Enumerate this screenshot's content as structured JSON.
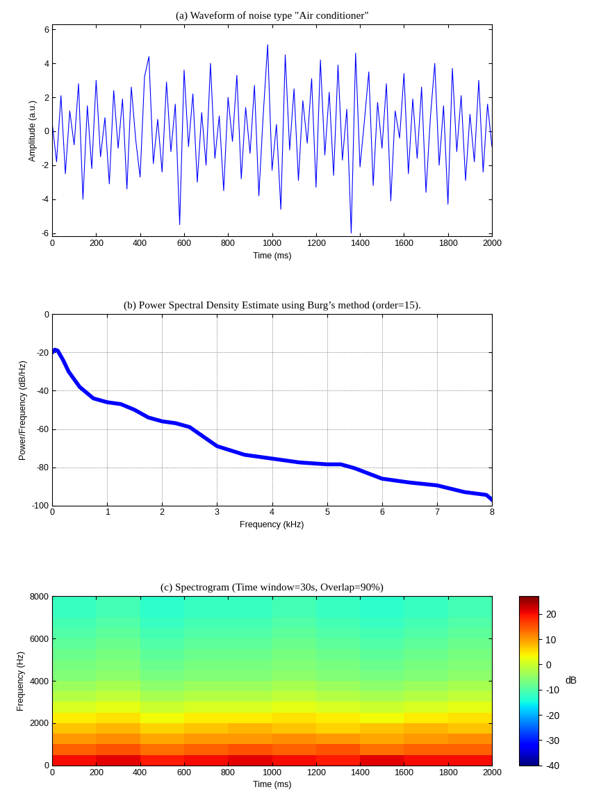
{
  "chart_data": [
    {
      "type": "line",
      "title": "(a) Waveform of noise type \"Air conditioner\"",
      "x_label": "Time (ms)",
      "y_label": "Amplitude (a.u.)",
      "x": [
        0,
        20,
        40,
        60,
        80,
        100,
        120,
        140,
        160,
        180,
        200,
        220,
        240,
        260,
        280,
        300,
        320,
        340,
        360,
        380,
        400,
        420,
        440,
        460,
        480,
        500,
        520,
        540,
        560,
        580,
        600,
        620,
        640,
        660,
        680,
        700,
        720,
        740,
        760,
        780,
        800,
        820,
        840,
        860,
        880,
        900,
        920,
        940,
        960,
        980,
        1000,
        1020,
        1040,
        1060,
        1080,
        1100,
        1120,
        1140,
        1160,
        1180,
        1200,
        1220,
        1240,
        1260,
        1280,
        1300,
        1320,
        1340,
        1360,
        1380,
        1400,
        1420,
        1440,
        1460,
        1480,
        1500,
        1520,
        1540,
        1560,
        1580,
        1600,
        1620,
        1640,
        1660,
        1680,
        1700,
        1720,
        1740,
        1760,
        1780,
        1800,
        1820,
        1840,
        1860,
        1880,
        1900,
        1920,
        1940,
        1960,
        1980,
        2000
      ],
      "values": [
        0.5,
        -1.8,
        2.1,
        -2.5,
        1.2,
        -0.8,
        2.8,
        -4.0,
        1.5,
        -2.2,
        3.0,
        -1.5,
        0.8,
        -3.1,
        2.4,
        -1.0,
        1.9,
        -3.4,
        2.6,
        -0.5,
        -2.7,
        3.2,
        4.4,
        -1.9,
        0.7,
        -2.4,
        2.9,
        -1.2,
        1.6,
        -5.5,
        3.6,
        -0.9,
        2.2,
        -3.0,
        1.1,
        -2.0,
        4.0,
        -1.6,
        0.9,
        -3.5,
        2.0,
        -0.6,
        3.3,
        -2.8,
        1.4,
        -1.3,
        2.7,
        -3.8,
        1.0,
        5.1,
        -2.3,
        0.4,
        -4.6,
        4.5,
        -1.1,
        2.5,
        -2.9,
        1.8,
        -0.7,
        3.1,
        -3.3,
        4.2,
        -1.4,
        2.3,
        -2.6,
        3.9,
        -1.7,
        1.3,
        -6.0,
        4.6,
        -2.1,
        0.6,
        3.5,
        -3.2,
        1.7,
        -1.0,
        2.8,
        -4.1,
        1.2,
        -0.4,
        3.4,
        -2.5,
        1.9,
        -1.6,
        2.6,
        -3.6,
        0.8,
        4.0,
        -2.0,
        1.5,
        -4.3,
        3.7,
        -1.2,
        2.1,
        -2.9,
        1.0,
        -1.8,
        3.0,
        -2.4,
        1.6,
        -0.9
      ],
      "color": "#0000ff",
      "xlim": [
        0,
        2000
      ],
      "ylim": [
        -6.2,
        6.3
      ],
      "xticks": [
        0,
        200,
        400,
        600,
        800,
        1000,
        1200,
        1400,
        1600,
        1800,
        2000
      ],
      "yticks": [
        -6,
        -4,
        -2,
        0,
        2,
        4,
        6
      ],
      "grid": false
    },
    {
      "type": "line",
      "title": "(b) Power Spectral Density Estimate using Burg’s method (order=15).",
      "x_label": "Frequency (kHz)",
      "y_label": "Power/Frequency (dB/Hz)",
      "x": [
        0,
        0.05,
        0.1,
        0.2,
        0.3,
        0.5,
        0.75,
        1,
        1.25,
        1.5,
        1.75,
        2,
        2.25,
        2.5,
        2.75,
        3,
        3.5,
        4,
        4.5,
        5,
        5.25,
        5.5,
        6,
        6.5,
        7,
        7.5,
        7.9,
        8
      ],
      "values": [
        -20,
        -18.5,
        -19,
        -24,
        -30,
        -38,
        -44,
        -46,
        -47,
        -50,
        -54,
        -56,
        -57,
        -59,
        -64,
        -69,
        -73.5,
        -75.5,
        -77.5,
        -78.5,
        -78.5,
        -80.5,
        -86,
        -88,
        -89.5,
        -93,
        -94.5,
        -97
      ],
      "color": "#0000ff",
      "xlim": [
        0,
        8
      ],
      "ylim": [
        -100,
        0
      ],
      "xticks": [
        0,
        1,
        2,
        3,
        4,
        5,
        6,
        7,
        8
      ],
      "yticks": [
        -100,
        -80,
        -60,
        -40,
        -20,
        0
      ],
      "grid": true
    },
    {
      "type": "heatmap",
      "title": "(c) Spectrogram (Time window=30s, Overlap=90%)",
      "x_label": "Time (ms)",
      "y_label": "Frequency (Hz)",
      "colorbar_label": "dB",
      "x": [
        100,
        300,
        500,
        700,
        900,
        1100,
        1300,
        1500,
        1700,
        1900
      ],
      "y": [
        250,
        750,
        1250,
        1750,
        2250,
        2750,
        3250,
        3750,
        4250,
        4750,
        5250,
        5750,
        6250,
        6750,
        7250,
        7750
      ],
      "cells": [
        [
          20,
          21,
          19,
          20,
          21,
          20,
          19,
          21,
          20,
          20
        ],
        [
          14,
          15,
          13,
          14,
          15,
          14,
          15,
          13,
          14,
          14
        ],
        [
          10,
          11,
          9,
          10,
          10,
          11,
          10,
          9,
          10,
          11
        ],
        [
          7,
          8,
          6,
          7,
          8,
          7,
          6,
          7,
          8,
          7
        ],
        [
          4,
          5,
          3,
          4,
          4,
          5,
          4,
          3,
          4,
          5
        ],
        [
          1,
          2,
          0,
          1,
          1,
          2,
          1,
          0,
          1,
          2
        ],
        [
          -2,
          -1,
          -3,
          -2,
          -2,
          -1,
          -2,
          -3,
          -2,
          -1
        ],
        [
          -4,
          -3,
          -5,
          -4,
          -4,
          -3,
          -4,
          -5,
          -4,
          -3
        ],
        [
          -6,
          -5,
          -7,
          -6,
          -6,
          -5,
          -6,
          -7,
          -6,
          -5
        ],
        [
          -7,
          -6,
          -8,
          -7,
          -7,
          -6,
          -7,
          -8,
          -7,
          -6
        ],
        [
          -8,
          -7,
          -9,
          -8,
          -8,
          -7,
          -8,
          -9,
          -8,
          -7
        ],
        [
          -9,
          -8,
          -10,
          -9,
          -9,
          -8,
          -9,
          -10,
          -9,
          -8
        ],
        [
          -10,
          -9,
          -11,
          -10,
          -10,
          -9,
          -10,
          -11,
          -10,
          -9
        ],
        [
          -11,
          -10,
          -12,
          -11,
          -11,
          -10,
          -11,
          -12,
          -11,
          -10
        ],
        [
          -12,
          -11,
          -13,
          -12,
          -12,
          -11,
          -12,
          -13,
          -12,
          -11
        ],
        [
          -12,
          -11,
          -13,
          -12,
          -12,
          -11,
          -12,
          -13,
          -12,
          -11
        ]
      ],
      "xlim": [
        0,
        2000
      ],
      "ylim": [
        0,
        8000
      ],
      "xticks": [
        0,
        200,
        400,
        600,
        800,
        1000,
        1200,
        1400,
        1600,
        1800,
        2000
      ],
      "yticks": [
        0,
        2000,
        4000,
        6000,
        8000
      ],
      "colorbar_range": [
        -40,
        27
      ],
      "colorbar_ticks": [
        -40,
        -30,
        -20,
        -10,
        0,
        10,
        20
      ]
    }
  ]
}
